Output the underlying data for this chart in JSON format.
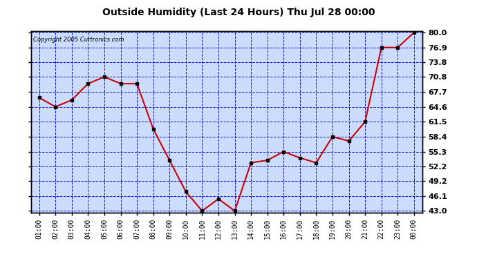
{
  "title": "Outside Humidity (Last 24 Hours) Thu Jul 28 00:00",
  "copyright": "Copyright 2005 Curtronics.com",
  "x_labels": [
    "01:00",
    "02:00",
    "03:00",
    "04:00",
    "05:00",
    "06:00",
    "07:00",
    "08:00",
    "09:00",
    "10:00",
    "11:00",
    "12:00",
    "13:00",
    "14:00",
    "15:00",
    "16:00",
    "17:00",
    "18:00",
    "19:00",
    "20:00",
    "21:00",
    "22:00",
    "23:00",
    "00:00"
  ],
  "y_values": [
    66.5,
    64.6,
    66.0,
    69.4,
    70.8,
    69.4,
    69.4,
    60.0,
    53.5,
    47.0,
    43.0,
    45.5,
    43.0,
    53.0,
    53.5,
    55.3,
    54.0,
    53.0,
    58.4,
    57.5,
    61.5,
    76.9,
    76.9,
    80.0
  ],
  "line_color": "#cc0000",
  "marker_color": "#000000",
  "bg_color": "#ccdcff",
  "grid_color": "#0000cc",
  "outer_bg": "#ffffff",
  "title_color": "#000000",
  "y_min": 43.0,
  "y_max": 80.0,
  "y_ticks": [
    43.0,
    46.1,
    49.2,
    52.2,
    55.3,
    58.4,
    61.5,
    64.6,
    67.7,
    70.8,
    73.8,
    76.9,
    80.0
  ]
}
